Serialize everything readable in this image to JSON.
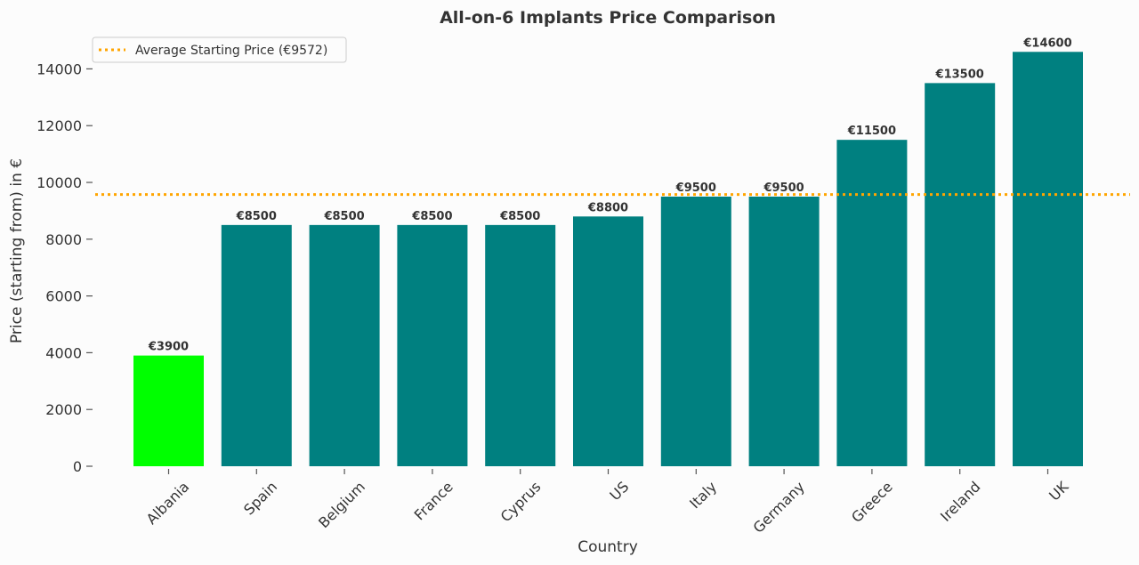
{
  "chart_data": {
    "type": "bar",
    "title": "All-on-6 Implants Price Comparison",
    "xlabel": "Country",
    "ylabel": "Price (starting from) in €",
    "categories": [
      "Albania",
      "Spain",
      "Belgium",
      "France",
      "Cyprus",
      "US",
      "Italy",
      "Germany",
      "Greece",
      "Ireland",
      "UK"
    ],
    "values": [
      3900,
      8500,
      8500,
      8500,
      8500,
      8800,
      9500,
      9500,
      11500,
      13500,
      14600
    ],
    "data_labels": [
      "€3900",
      "€8500",
      "€8500",
      "€8500",
      "€8500",
      "€8800",
      "€9500",
      "€9500",
      "€11500",
      "€13500",
      "€14600"
    ],
    "bar_colors": [
      "#00ff00",
      "#008080",
      "#008080",
      "#008080",
      "#008080",
      "#008080",
      "#008080",
      "#008080",
      "#008080",
      "#008080",
      "#008080"
    ],
    "yticks": [
      0,
      2000,
      4000,
      6000,
      8000,
      10000,
      12000,
      14000
    ],
    "ylim": [
      0,
      15330
    ],
    "grid": false,
    "reference_line": {
      "value": 9572,
      "label": "Average Starting Price (€9572)",
      "color": "#ffa500",
      "style": "dotted"
    },
    "legend_position": "upper-left"
  }
}
